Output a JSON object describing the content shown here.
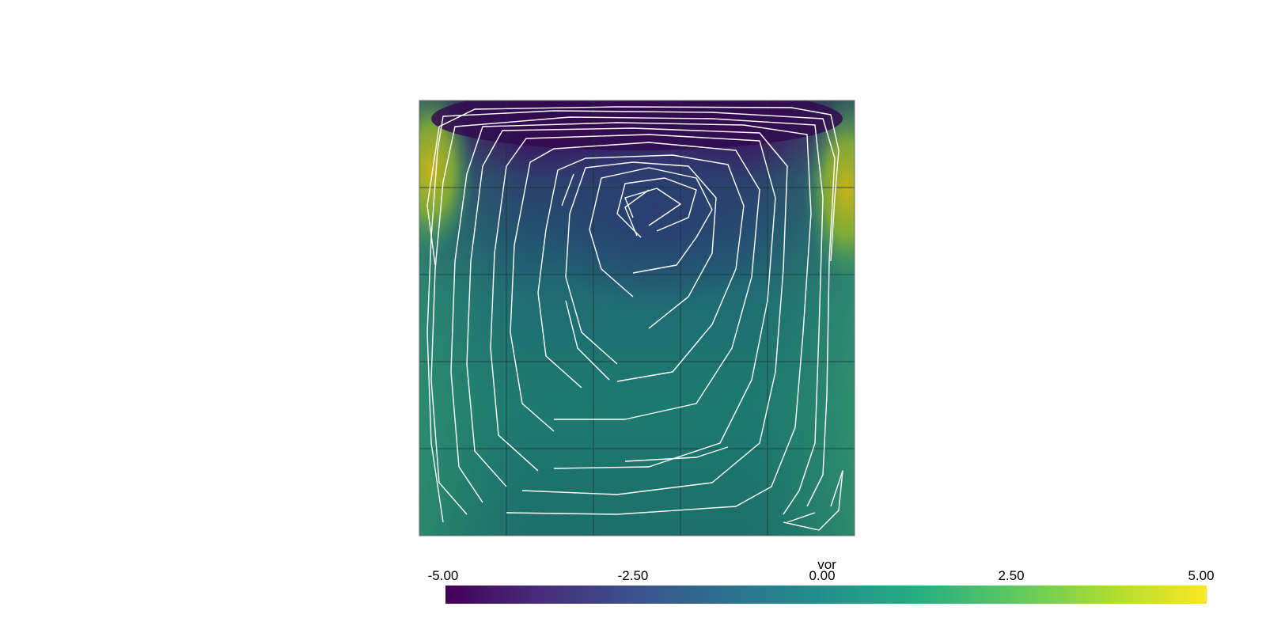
{
  "colorbar": {
    "title": "vor",
    "range": [
      -5.0,
      5.0
    ],
    "ticks": [
      "-5.00",
      "-2.50",
      "0.00",
      "2.50",
      "5.00"
    ],
    "colormap": "viridis",
    "colors": [
      "#440154",
      "#3b528b",
      "#21918c",
      "#5ec962",
      "#fde725"
    ]
  },
  "field": {
    "variable": "vor",
    "grid_divisions": 5,
    "grid_color": "#1e2f34",
    "streamline_color": "#ffffff"
  }
}
